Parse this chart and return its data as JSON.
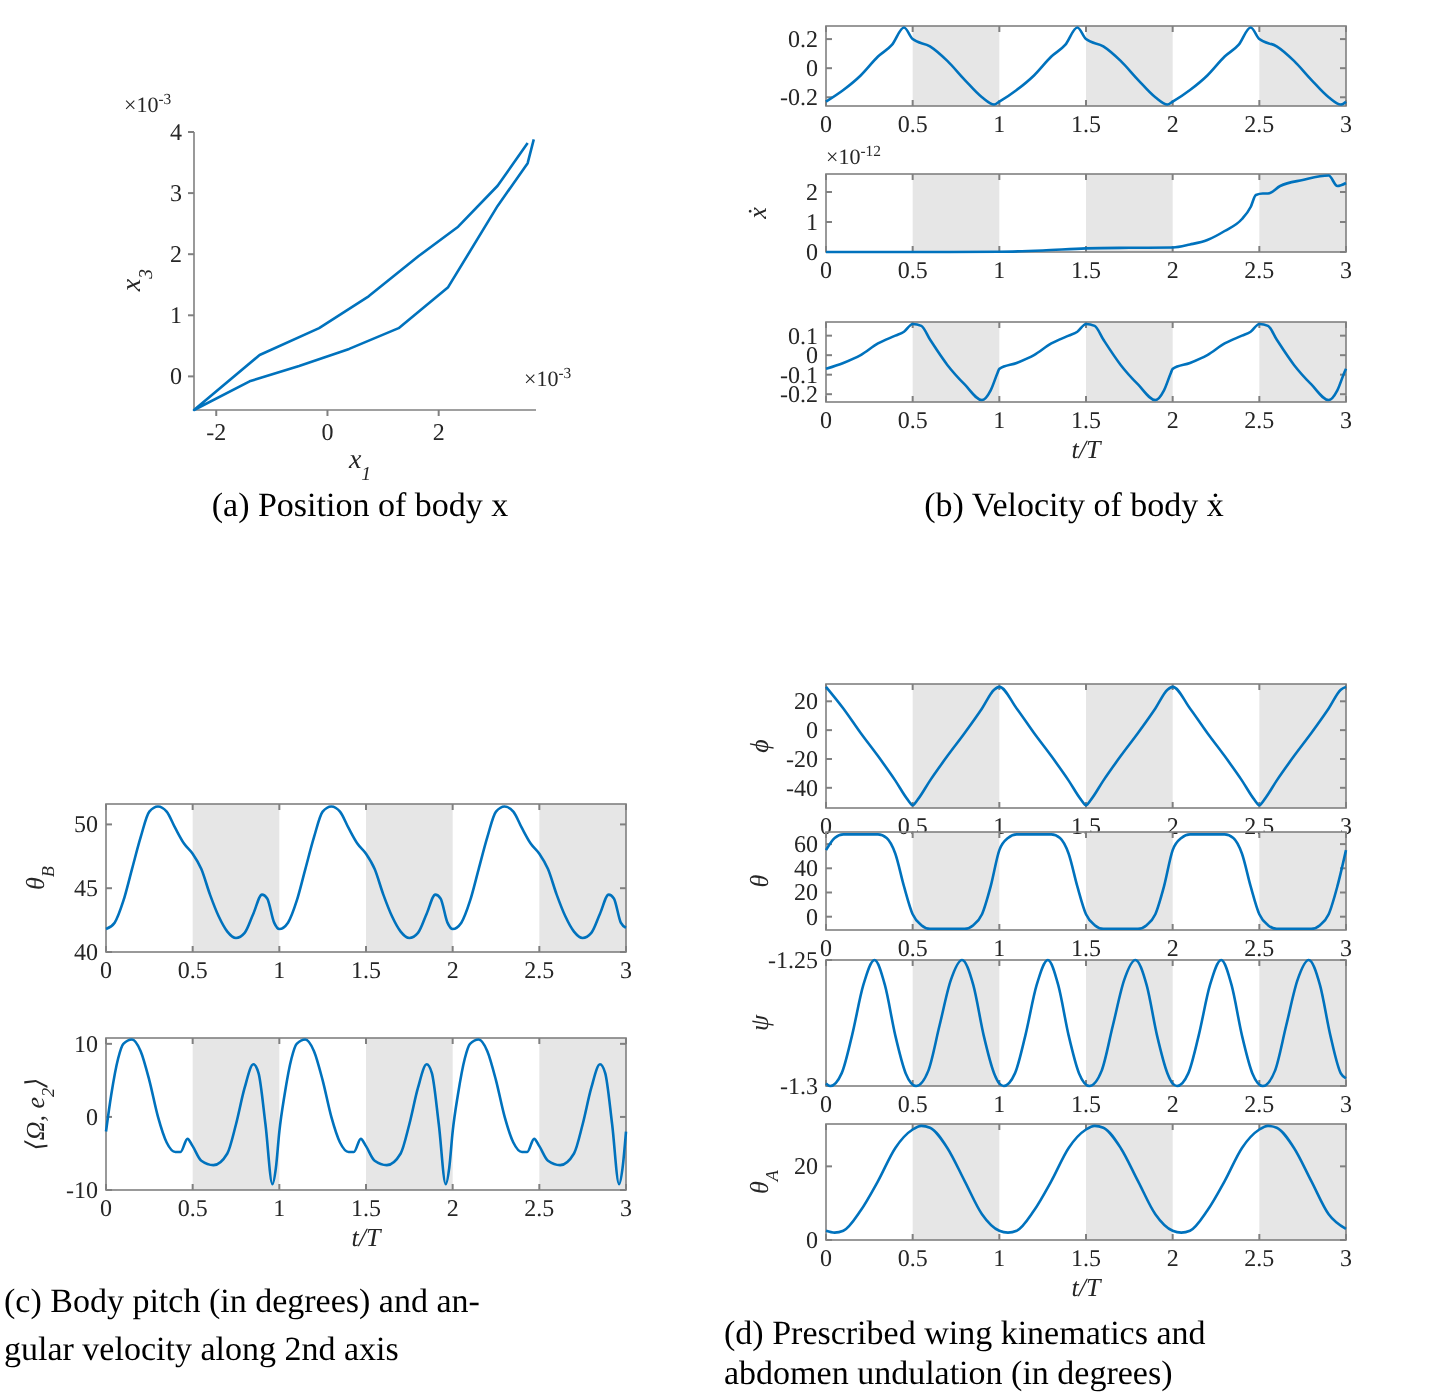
{
  "chart_data": [
    {
      "type": "line",
      "xlabel": "x$_{1}$",
      "ylabel": "x$_{3}$",
      "xlim": [
        -2.4,
        3.75
      ],
      "ylim": [
        -0.55,
        4
      ],
      "xticks": [
        -2,
        0,
        2
      ],
      "yticks": [
        0,
        1,
        2,
        3,
        4
      ],
      "color": "#0072bd",
      "x": [
        3.71,
        3.6,
        3.06,
        2.17,
        1.28,
        0.39,
        -0.51,
        -1.4,
        -2.4,
        -1.22,
        -0.15,
        0.74,
        1.64,
        2.35,
        3.06,
        3.6
      ],
      "values": [
        3.88,
        3.49,
        2.79,
        1.46,
        0.79,
        0.45,
        0.17,
        -0.08,
        -0.55,
        0.35,
        0.79,
        1.31,
        1.97,
        2.45,
        3.12,
        3.82
      ],
      "annotations": [
        "×10$^{-3}$",
        "×10$^{-3}$",
        "(a) Position of body x"
      ]
    },
    {
      "type": "line",
      "color": "#0072bd",
      "xlim": [
        0,
        3
      ],
      "ylim": [
        -0.26,
        0.29
      ],
      "xticks": [
        0,
        0.5,
        1,
        1.5,
        2,
        2.5,
        3
      ],
      "yticks": [
        -0.2,
        0,
        0.2
      ],
      "bands": [
        {
          "axis": "x",
          "from": 0.5,
          "to": 1,
          "color": "#e6e6e6"
        },
        {
          "axis": "x",
          "from": 1.5,
          "to": 2,
          "color": "#e6e6e6"
        },
        {
          "axis": "x",
          "from": 2.5,
          "to": 3,
          "color": "#e6e6e6"
        }
      ],
      "x": [
        0,
        0.1,
        0.2,
        0.3,
        0.38,
        0.45,
        0.5,
        0.6,
        0.7,
        0.8,
        0.9,
        0.97,
        1,
        1.1,
        1.2,
        1.3,
        1.38,
        1.45,
        1.5,
        1.6,
        1.7,
        1.8,
        1.9,
        1.97,
        2,
        2.1,
        2.2,
        2.3,
        2.38,
        2.45,
        2.5,
        2.6,
        2.7,
        2.8,
        2.9,
        2.97,
        3
      ],
      "values": [
        -0.23,
        -0.15,
        -0.05,
        0.08,
        0.16,
        0.28,
        0.2,
        0.15,
        0.05,
        -0.08,
        -0.2,
        -0.25,
        -0.23,
        -0.15,
        -0.05,
        0.08,
        0.16,
        0.28,
        0.2,
        0.15,
        0.05,
        -0.08,
        -0.2,
        -0.25,
        -0.23,
        -0.15,
        -0.05,
        0.08,
        0.16,
        0.28,
        0.2,
        0.15,
        0.05,
        -0.08,
        -0.2,
        -0.25,
        -0.23
      ]
    },
    {
      "type": "line",
      "ylabel": "ẋ",
      "color": "#0072bd",
      "xlim": [
        0,
        3
      ],
      "ylim": [
        0,
        2.6
      ],
      "xticks": [
        0,
        0.5,
        1,
        1.5,
        2,
        2.5,
        3
      ],
      "yticks": [
        0,
        1,
        2
      ],
      "bands": [
        {
          "axis": "x",
          "from": 0.5,
          "to": 1,
          "color": "#e6e6e6"
        },
        {
          "axis": "x",
          "from": 1.5,
          "to": 2,
          "color": "#e6e6e6"
        },
        {
          "axis": "x",
          "from": 2.5,
          "to": 3,
          "color": "#e6e6e6"
        }
      ],
      "x": [
        0,
        0.5,
        1,
        1.25,
        1.5,
        1.75,
        2,
        2.1,
        2.2,
        2.3,
        2.4,
        2.45,
        2.48,
        2.52,
        2.55,
        2.62,
        2.75,
        2.9,
        2.95,
        3
      ],
      "values": [
        0,
        0,
        0.01,
        0.05,
        0.12,
        0.14,
        0.15,
        0.25,
        0.4,
        0.7,
        1.1,
        1.5,
        1.9,
        1.95,
        1.95,
        2.2,
        2.4,
        2.55,
        2.2,
        2.3
      ],
      "annotations": [
        "×10$^{-12}$"
      ]
    },
    {
      "type": "line",
      "xlabel": "t/T",
      "color": "#0072bd",
      "xlim": [
        0,
        3
      ],
      "ylim": [
        -0.24,
        0.17
      ],
      "xticks": [
        0,
        0.5,
        1,
        1.5,
        2,
        2.5,
        3
      ],
      "yticks": [
        -0.2,
        -0.1,
        0,
        0.1
      ],
      "bands": [
        {
          "axis": "x",
          "from": 0.5,
          "to": 1,
          "color": "#e6e6e6"
        },
        {
          "axis": "x",
          "from": 1.5,
          "to": 2,
          "color": "#e6e6e6"
        },
        {
          "axis": "x",
          "from": 2.5,
          "to": 3,
          "color": "#e6e6e6"
        }
      ],
      "x": [
        0,
        0.1,
        0.2,
        0.3,
        0.4,
        0.45,
        0.5,
        0.55,
        0.6,
        0.7,
        0.8,
        0.9,
        0.95,
        0.99,
        1,
        1.1,
        1.2,
        1.3,
        1.4,
        1.45,
        1.5,
        1.55,
        1.6,
        1.7,
        1.8,
        1.9,
        1.95,
        1.99,
        2,
        2.1,
        2.2,
        2.3,
        2.4,
        2.45,
        2.5,
        2.55,
        2.6,
        2.7,
        2.8,
        2.9,
        2.95,
        2.99,
        3
      ],
      "values": [
        -0.07,
        -0.04,
        0,
        0.06,
        0.1,
        0.12,
        0.16,
        0.15,
        0.08,
        -0.05,
        -0.15,
        -0.23,
        -0.18,
        -0.09,
        -0.07,
        -0.04,
        0,
        0.06,
        0.1,
        0.12,
        0.16,
        0.15,
        0.08,
        -0.05,
        -0.15,
        -0.23,
        -0.18,
        -0.09,
        -0.07,
        -0.04,
        0,
        0.06,
        0.1,
        0.12,
        0.16,
        0.15,
        0.08,
        -0.05,
        -0.15,
        -0.23,
        -0.18,
        -0.09,
        -0.07
      ],
      "annotations": [
        "(b) Velocity of body ẋ"
      ]
    },
    {
      "type": "line",
      "ylabel": "θ$_{B}$",
      "color": "#0072bd",
      "xlim": [
        0,
        3
      ],
      "ylim": [
        40,
        51.6
      ],
      "xticks": [
        0,
        0.5,
        1,
        1.5,
        2,
        2.5,
        3
      ],
      "yticks": [
        40,
        45,
        50
      ],
      "bands": [
        {
          "axis": "x",
          "from": 0.5,
          "to": 1,
          "color": "#e6e6e6"
        },
        {
          "axis": "x",
          "from": 1.5,
          "to": 2,
          "color": "#e6e6e6"
        },
        {
          "axis": "x",
          "from": 2.5,
          "to": 3,
          "color": "#e6e6e6"
        }
      ],
      "x": [
        0,
        0.05,
        0.1,
        0.15,
        0.2,
        0.25,
        0.3,
        0.35,
        0.4,
        0.45,
        0.5,
        0.55,
        0.6,
        0.65,
        0.7,
        0.75,
        0.8,
        0.85,
        0.9,
        0.93,
        0.97,
        1,
        1.05,
        1.1,
        1.15,
        1.2,
        1.25,
        1.3,
        1.35,
        1.4,
        1.45,
        1.5,
        1.55,
        1.6,
        1.65,
        1.7,
        1.75,
        1.8,
        1.85,
        1.9,
        1.93,
        1.97,
        2,
        2.05,
        2.1,
        2.15,
        2.2,
        2.25,
        2.3,
        2.35,
        2.4,
        2.45,
        2.5,
        2.55,
        2.6,
        2.65,
        2.7,
        2.75,
        2.8,
        2.85,
        2.9,
        2.93,
        2.97,
        3
      ],
      "values": [
        41.8,
        42.3,
        44,
        46.5,
        49,
        51,
        51.4,
        51,
        49.7,
        48.5,
        47.7,
        46.5,
        44.5,
        42.8,
        41.6,
        41.1,
        41.5,
        43,
        44.5,
        44.2,
        42.3,
        41.8,
        42.3,
        44,
        46.5,
        49,
        51,
        51.4,
        51,
        49.7,
        48.5,
        47.7,
        46.5,
        44.5,
        42.8,
        41.6,
        41.1,
        41.5,
        43,
        44.5,
        44.2,
        42.3,
        41.8,
        42.3,
        44,
        46.5,
        49,
        51,
        51.4,
        51,
        49.7,
        48.5,
        47.7,
        46.5,
        44.5,
        42.8,
        41.6,
        41.1,
        41.5,
        43,
        44.5,
        44.2,
        42.3,
        41.9
      ]
    },
    {
      "type": "line",
      "xlabel": "t/T",
      "ylabel": "⟨Ω, e$_{2}$⟩",
      "color": "#0072bd",
      "xlim": [
        0,
        3
      ],
      "ylim": [
        -10,
        10.8
      ],
      "xticks": [
        0,
        0.5,
        1,
        1.5,
        2,
        2.5,
        3
      ],
      "yticks": [
        -10,
        0,
        10
      ],
      "bands": [
        {
          "axis": "x",
          "from": 0.5,
          "to": 1,
          "color": "#e6e6e6"
        },
        {
          "axis": "x",
          "from": 1.5,
          "to": 2,
          "color": "#e6e6e6"
        },
        {
          "axis": "x",
          "from": 2.5,
          "to": 3,
          "color": "#e6e6e6"
        }
      ],
      "x": [
        0,
        0.03,
        0.07,
        0.1,
        0.15,
        0.2,
        0.25,
        0.3,
        0.35,
        0.4,
        0.43,
        0.47,
        0.5,
        0.55,
        0.62,
        0.7,
        0.75,
        0.8,
        0.85,
        0.88,
        0.92,
        0.96,
        0.98,
        1,
        1.03,
        1.07,
        1.1,
        1.15,
        1.2,
        1.25,
        1.3,
        1.35,
        1.4,
        1.43,
        1.47,
        1.5,
        1.55,
        1.62,
        1.7,
        1.75,
        1.8,
        1.85,
        1.88,
        1.92,
        1.96,
        1.98,
        2,
        2.03,
        2.07,
        2.1,
        2.15,
        2.2,
        2.25,
        2.3,
        2.35,
        2.4,
        2.43,
        2.47,
        2.5,
        2.55,
        2.62,
        2.7,
        2.75,
        2.8,
        2.85,
        2.88,
        2.92,
        2.96,
        2.98,
        3
      ],
      "values": [
        -2,
        3,
        8,
        10,
        10.6,
        9,
        5,
        0,
        -3.5,
        -4.8,
        -4.8,
        -3,
        -4,
        -6,
        -6.6,
        -5,
        -1,
        4,
        7.2,
        6,
        -1,
        -9.2,
        -7,
        -2,
        3,
        8,
        10,
        10.6,
        9,
        5,
        0,
        -3.5,
        -4.8,
        -4.8,
        -3,
        -4,
        -6,
        -6.6,
        -5,
        -1,
        4,
        7.2,
        6,
        -1,
        -9.2,
        -7,
        -2,
        3,
        8,
        10,
        10.6,
        9,
        5,
        0,
        -3.5,
        -4.8,
        -4.8,
        -3,
        -4,
        -6,
        -6.6,
        -5,
        -1,
        4,
        7.2,
        6,
        -1,
        -9.2,
        -7,
        -2
      ],
      "annotations": [
        "(c) Body pitch (in degrees) and an-",
        "gular velocity along 2nd axis"
      ]
    },
    {
      "type": "line",
      "ylabel": "ϕ",
      "color": "#0072bd",
      "xlim": [
        0,
        3
      ],
      "ylim": [
        -54,
        32
      ],
      "xticks": [
        0,
        0.5,
        1,
        1.5,
        2,
        2.5,
        3
      ],
      "yticks": [
        -40,
        -20,
        0,
        20
      ],
      "bands": [
        {
          "axis": "x",
          "from": 0.5,
          "to": 1,
          "color": "#e6e6e6"
        },
        {
          "axis": "x",
          "from": 1.5,
          "to": 2,
          "color": "#e6e6e6"
        },
        {
          "axis": "x",
          "from": 2.5,
          "to": 3,
          "color": "#e6e6e6"
        }
      ],
      "x": [
        0,
        0.1,
        0.2,
        0.3,
        0.4,
        0.47,
        0.5,
        0.53,
        0.6,
        0.7,
        0.8,
        0.9,
        0.97,
        1,
        1.1,
        1.2,
        1.3,
        1.4,
        1.47,
        1.5,
        1.53,
        1.6,
        1.7,
        1.8,
        1.9,
        1.97,
        2,
        2.1,
        2.2,
        2.3,
        2.4,
        2.47,
        2.5,
        2.53,
        2.6,
        2.7,
        2.8,
        2.9,
        2.97,
        3
      ],
      "values": [
        30,
        15,
        -2,
        -18,
        -35,
        -48,
        -52,
        -48,
        -35,
        -18,
        -2,
        15,
        28,
        30,
        15,
        -2,
        -18,
        -35,
        -48,
        -52,
        -48,
        -35,
        -18,
        -2,
        15,
        28,
        30,
        15,
        -2,
        -18,
        -35,
        -48,
        -52,
        -48,
        -35,
        -18,
        -2,
        15,
        28,
        30
      ]
    },
    {
      "type": "line",
      "ylabel": "θ",
      "color": "#0072bd",
      "xlim": [
        0,
        3
      ],
      "ylim": [
        -11,
        70
      ],
      "xticks": [
        0,
        0.5,
        1,
        1.5,
        2,
        2.5,
        3
      ],
      "yticks": [
        0,
        20,
        40,
        60
      ],
      "bands": [
        {
          "axis": "x",
          "from": 0.5,
          "to": 1,
          "color": "#e6e6e6"
        },
        {
          "axis": "x",
          "from": 1.5,
          "to": 2,
          "color": "#e6e6e6"
        },
        {
          "axis": "x",
          "from": 2.5,
          "to": 3,
          "color": "#e6e6e6"
        }
      ],
      "x": [
        0,
        0.05,
        0.1,
        0.3,
        0.35,
        0.4,
        0.45,
        0.5,
        0.55,
        0.6,
        0.8,
        0.85,
        0.9,
        0.95,
        1,
        1.05,
        1.1,
        1.3,
        1.35,
        1.4,
        1.45,
        1.5,
        1.55,
        1.6,
        1.8,
        1.85,
        1.9,
        1.95,
        2,
        2.05,
        2.1,
        2.3,
        2.35,
        2.4,
        2.45,
        2.5,
        2.55,
        2.6,
        2.8,
        2.85,
        2.9,
        2.95,
        3
      ],
      "values": [
        55,
        65,
        68,
        68,
        65,
        52,
        25,
        2,
        -7,
        -10,
        -10,
        -7,
        2,
        25,
        55,
        65,
        68,
        68,
        65,
        52,
        25,
        2,
        -7,
        -10,
        -10,
        -7,
        2,
        25,
        55,
        65,
        68,
        68,
        65,
        52,
        25,
        2,
        -7,
        -10,
        -10,
        -7,
        2,
        25,
        55
      ]
    },
    {
      "type": "line",
      "ylabel": "ψ",
      "color": "#0072bd",
      "xlim": [
        0,
        3
      ],
      "ylim": [
        -1.3,
        -1.25
      ],
      "xticks": [
        0,
        0.5,
        1,
        1.5,
        2,
        2.5,
        3
      ],
      "yticks": [
        -1.3,
        -1.25
      ],
      "bands": [
        {
          "axis": "x",
          "from": 0.5,
          "to": 1,
          "color": "#e6e6e6"
        },
        {
          "axis": "x",
          "from": 1.5,
          "to": 2,
          "color": "#e6e6e6"
        },
        {
          "axis": "x",
          "from": 2.5,
          "to": 3,
          "color": "#e6e6e6"
        }
      ],
      "x": [
        0,
        0.025,
        0.09,
        0.15,
        0.215,
        0.28,
        0.34,
        0.4,
        0.46,
        0.52,
        0.59,
        0.655,
        0.72,
        0.785,
        0.85,
        0.91,
        0.97,
        1,
        1.025,
        1.09,
        1.15,
        1.215,
        1.28,
        1.34,
        1.4,
        1.46,
        1.52,
        1.59,
        1.655,
        1.72,
        1.785,
        1.85,
        1.91,
        1.97,
        2,
        2.025,
        2.09,
        2.15,
        2.215,
        2.28,
        2.34,
        2.4,
        2.46,
        2.52,
        2.59,
        2.655,
        2.72,
        2.785,
        2.85,
        2.91,
        2.97,
        3
      ],
      "values": [
        -1.299,
        -1.3,
        -1.295,
        -1.28,
        -1.26,
        -1.25,
        -1.26,
        -1.28,
        -1.295,
        -1.3,
        -1.294,
        -1.276,
        -1.258,
        -1.25,
        -1.26,
        -1.28,
        -1.295,
        -1.299,
        -1.3,
        -1.295,
        -1.28,
        -1.26,
        -1.25,
        -1.26,
        -1.28,
        -1.295,
        -1.3,
        -1.294,
        -1.276,
        -1.258,
        -1.25,
        -1.26,
        -1.28,
        -1.295,
        -1.299,
        -1.3,
        -1.295,
        -1.28,
        -1.26,
        -1.25,
        -1.26,
        -1.28,
        -1.295,
        -1.3,
        -1.294,
        -1.276,
        -1.258,
        -1.25,
        -1.26,
        -1.28,
        -1.295,
        -1.297
      ]
    },
    {
      "type": "line",
      "xlabel": "t/T",
      "ylabel": "θ$_{A}$",
      "color": "#0072bd",
      "xlim": [
        0,
        3
      ],
      "ylim": [
        0,
        31.5
      ],
      "xticks": [
        0,
        0.5,
        1,
        1.5,
        2,
        2.5,
        3
      ],
      "yticks": [
        0,
        20
      ],
      "bands": [
        {
          "axis": "x",
          "from": 0.5,
          "to": 1,
          "color": "#e6e6e6"
        },
        {
          "axis": "x",
          "from": 1.5,
          "to": 2,
          "color": "#e6e6e6"
        },
        {
          "axis": "x",
          "from": 2.5,
          "to": 3,
          "color": "#e6e6e6"
        }
      ],
      "x": [
        0,
        0.05,
        0.1,
        0.2,
        0.3,
        0.4,
        0.5,
        0.55,
        0.6,
        0.7,
        0.8,
        0.9,
        1,
        1.05,
        1.1,
        1.2,
        1.3,
        1.4,
        1.5,
        1.55,
        1.6,
        1.7,
        1.8,
        1.9,
        2,
        2.05,
        2.1,
        2.2,
        2.3,
        2.4,
        2.5,
        2.55,
        2.6,
        2.7,
        2.8,
        2.9,
        3
      ],
      "values": [
        2.5,
        2,
        2.5,
        8,
        16,
        25,
        30,
        31,
        30.5,
        25,
        16,
        7,
        2.5,
        2,
        2.5,
        8,
        16,
        25,
        30,
        31,
        30.5,
        25,
        16,
        7,
        2.5,
        2,
        2.5,
        8,
        16,
        25,
        30,
        31,
        30.5,
        25,
        16,
        7,
        3
      ],
      "annotations": [
        "(d) Prescribed wing kinematics and",
        "abdomen undulation (in degrees)"
      ]
    }
  ]
}
